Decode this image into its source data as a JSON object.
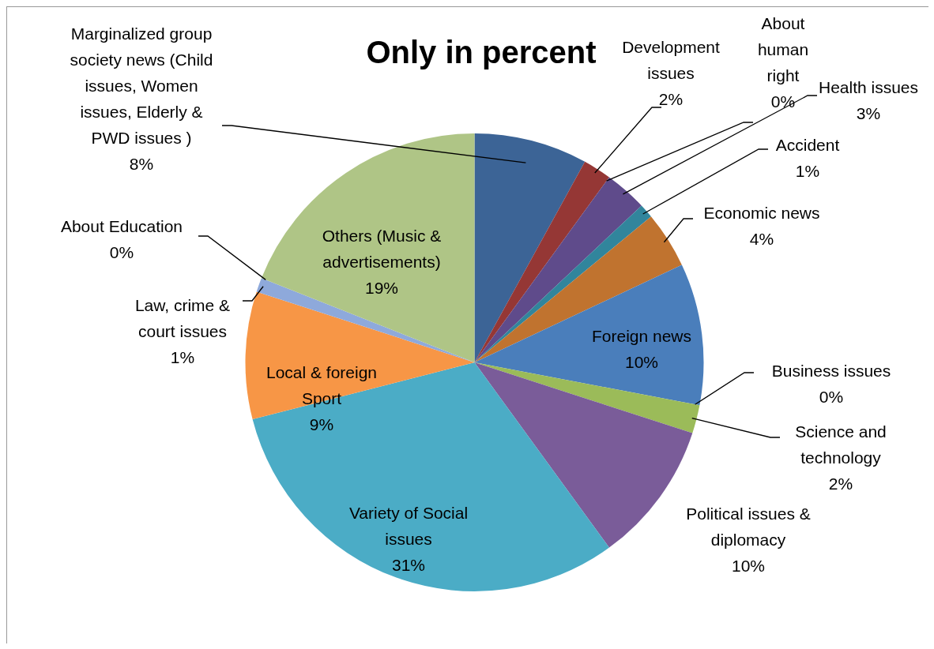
{
  "chart_data": {
    "type": "pie",
    "title": "Only in percent",
    "categories": [
      "Marginalized group society news (Child issues, Women issues, Elderly & PWD issues )",
      "Development issues",
      "About human right",
      "Health issues",
      "Accident",
      "Economic news",
      "Foreign news",
      "Business issues",
      "Science and technology",
      "Political issues & diplomacy",
      "Variety of Social issues",
      "Local & foreign Sport",
      "Law, crime & court issues",
      "About Education",
      "Others (Music & advertisements)"
    ],
    "values": [
      8,
      2,
      0,
      3,
      1,
      4,
      10,
      0,
      2,
      10,
      31,
      9,
      1,
      0,
      19
    ],
    "value_labels": [
      "8%",
      "2%",
      "0%",
      "3%",
      "1%",
      "4%",
      "10%",
      "0%",
      "2%",
      "10%",
      "31%",
      "9%",
      "1%",
      "0%",
      "19%"
    ],
    "colors": [
      "#3c6496",
      "#953735",
      "#77933c",
      "#5f4b8b",
      "#31859c",
      "#c0732f",
      "#4a7ebb",
      "#c0504d",
      "#9bbb59",
      "#7a5c99",
      "#4bacc6",
      "#f79646",
      "#8ea9db",
      "#e06666",
      "#afc586"
    ],
    "legend": false
  }
}
